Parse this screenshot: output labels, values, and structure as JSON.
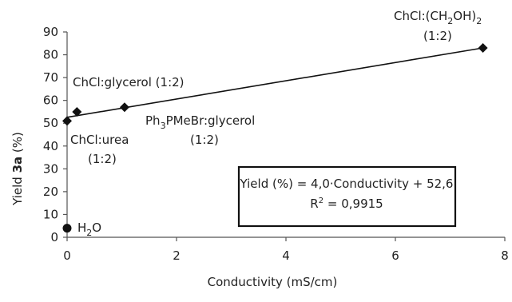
{
  "chart_data": {
    "type": "scatter",
    "xlabel": "Conductivity (mS/cm)",
    "ylabel_parts": [
      "Yield ",
      "3a",
      " (%)"
    ],
    "xlim": [
      0,
      8
    ],
    "ylim": [
      0,
      90
    ],
    "x_ticks": [
      0,
      2,
      4,
      6,
      8
    ],
    "y_ticks": [
      0,
      10,
      20,
      30,
      40,
      50,
      60,
      70,
      80,
      90
    ],
    "grid": false,
    "points": [
      {
        "x": 0.0,
        "y": 51,
        "marker": "diamond",
        "label": [
          "ChCl:urea",
          "(1:2)"
        ]
      },
      {
        "x": 0.18,
        "y": 55,
        "marker": "diamond",
        "label": [
          "ChCl:glycerol (1:2)"
        ]
      },
      {
        "x": 1.05,
        "y": 57,
        "marker": "diamond",
        "label": [
          "Ph3PMeBr:glycerol",
          "(1:2)"
        ]
      },
      {
        "x": 7.6,
        "y": 83,
        "marker": "diamond",
        "label": [
          "ChCl:(CH2OH)2",
          "(1:2)"
        ]
      },
      {
        "x": 0.0,
        "y": 4,
        "marker": "circle",
        "label": [
          "H2O"
        ]
      }
    ],
    "trendline": {
      "slope": 4.0,
      "intercept": 52.6,
      "x_range": [
        0,
        7.6
      ]
    },
    "equation": {
      "line1": "Yield (%) = 4,0·Conductivity + 52,6",
      "line2_prefix": "R",
      "line2_sup": "2",
      "line2_suffix": " = 0,9915"
    }
  }
}
